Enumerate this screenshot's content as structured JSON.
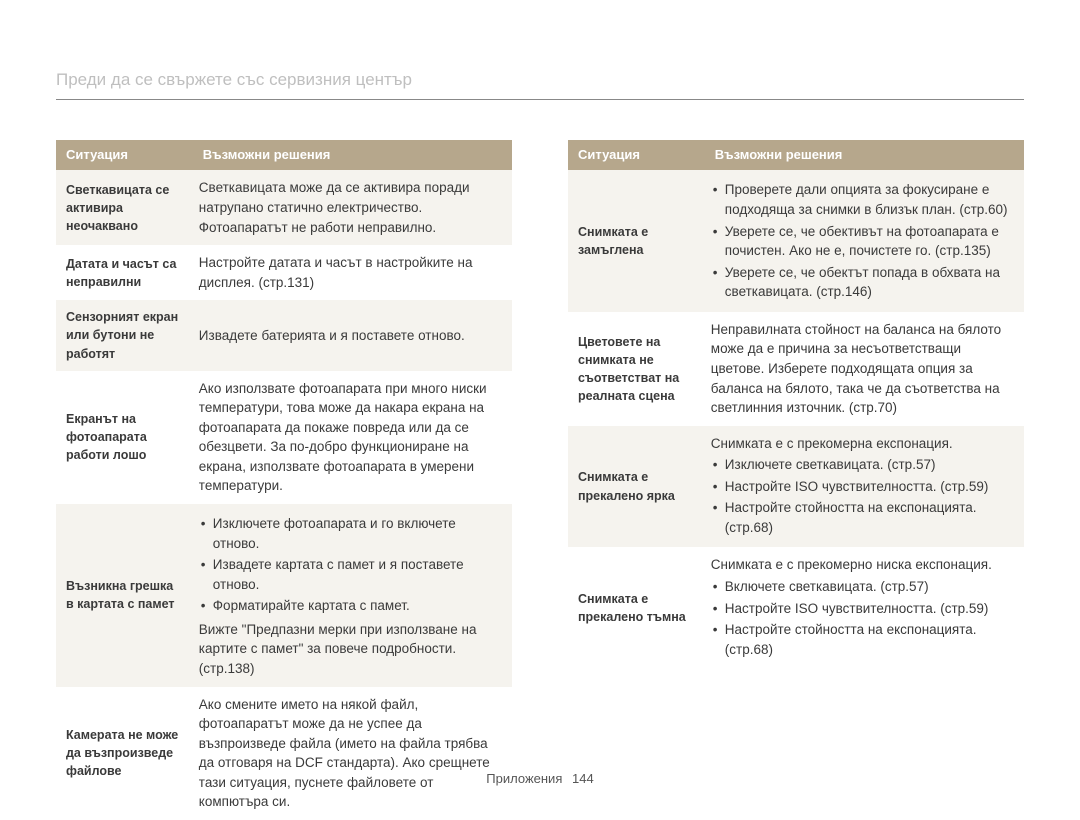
{
  "page_title": "Преди да се свържете със сервизния център",
  "footer_label": "Приложения",
  "page_number": "144",
  "columns": {
    "situation": "Ситуация",
    "solutions": "Възможни решения"
  },
  "colors": {
    "header_bg": "#b6a78c",
    "header_text": "#ffffff",
    "alt_row_bg": "#f5f3ee",
    "title_text": "#bfbfbf",
    "rule": "#888888",
    "body_text": "#3a3a3a"
  },
  "left_table": [
    {
      "alt": true,
      "situation": "Светкавицата се активира неочаквано",
      "text": "Светкавицата може да се активира поради натрупано статично електричество. Фотоапаратът не работи неправилно."
    },
    {
      "alt": false,
      "situation": "Датата и часът са неправилни",
      "text": "Настройте датата и часът в настройките на дисплея. (стр.131)"
    },
    {
      "alt": true,
      "situation": "Сензорният екран или бутони не работят",
      "text": "Извадете батерията и я поставете отново."
    },
    {
      "alt": false,
      "situation": "Екранът на фотоапарата работи лошо",
      "text": "Ако използвате фотоапарата при много ниски температури, това може да накара екрана на фотоапарата да покаже повреда или да се обезцвети. За по-добро функциониране на екрана, използвате фотоапарата в умерени температури."
    },
    {
      "alt": true,
      "situation": "Възникна грешка в картата с памет",
      "bullets": [
        "Изключете фотоапарата и го включете отново.",
        "Извадете картата с памет и я поставете отново.",
        "Форматирайте картата с памет."
      ],
      "extra": "Вижте \"Предпазни мерки при използване на картите с памет\" за повече подробности. (стр.138)"
    },
    {
      "alt": false,
      "situation": "Камерата не може да възпроизведе файлове",
      "text": "Ако смените името на някой файл, фотоапаратът може да не успее да възпроизведе файла (името на файла трябва да отговаря на DCF стандарта). Ако срещнете тази ситуация, пуснете файловете от компютъра си."
    }
  ],
  "right_table": [
    {
      "alt": true,
      "situation": "Снимката е замъглена",
      "bullets": [
        "Проверете дали опцията за фокусиране е подходяща за снимки в близък план. (стр.60)",
        "Уверете се, че обективът на фотоапарата е почистен. Ако не е, почистете го. (стр.135)",
        "Уверете се, че обектът попада в обхвата на светкавицата. (стр.146)"
      ]
    },
    {
      "alt": false,
      "situation": "Цветовете на снимката не съответстват на реалната сцена",
      "text": "Неправилната стойност на баланса на бялото може да е причина за несъответстващи цветове. Изберете подходящата опция за баланса на бялото, така че да съответства на светлинния източник. (стр.70)"
    },
    {
      "alt": true,
      "situation": "Снимката е прекалено ярка",
      "lead": "Снимката е с прекомерна експонация.",
      "bullets": [
        "Изключете светкавицата. (стр.57)",
        "Настройте ISO чувствителността. (стр.59)",
        "Настройте стойността на експонацията. (стр.68)"
      ]
    },
    {
      "alt": false,
      "situation": "Снимката е прекалено тъмна",
      "lead": "Снимката е с прекомерно ниска експонация.",
      "bullets": [
        "Включете светкавицата. (стр.57)",
        "Настройте ISO чувствителността. (стр.59)",
        "Настройте стойността на експонацията. (стр.68)"
      ]
    }
  ]
}
